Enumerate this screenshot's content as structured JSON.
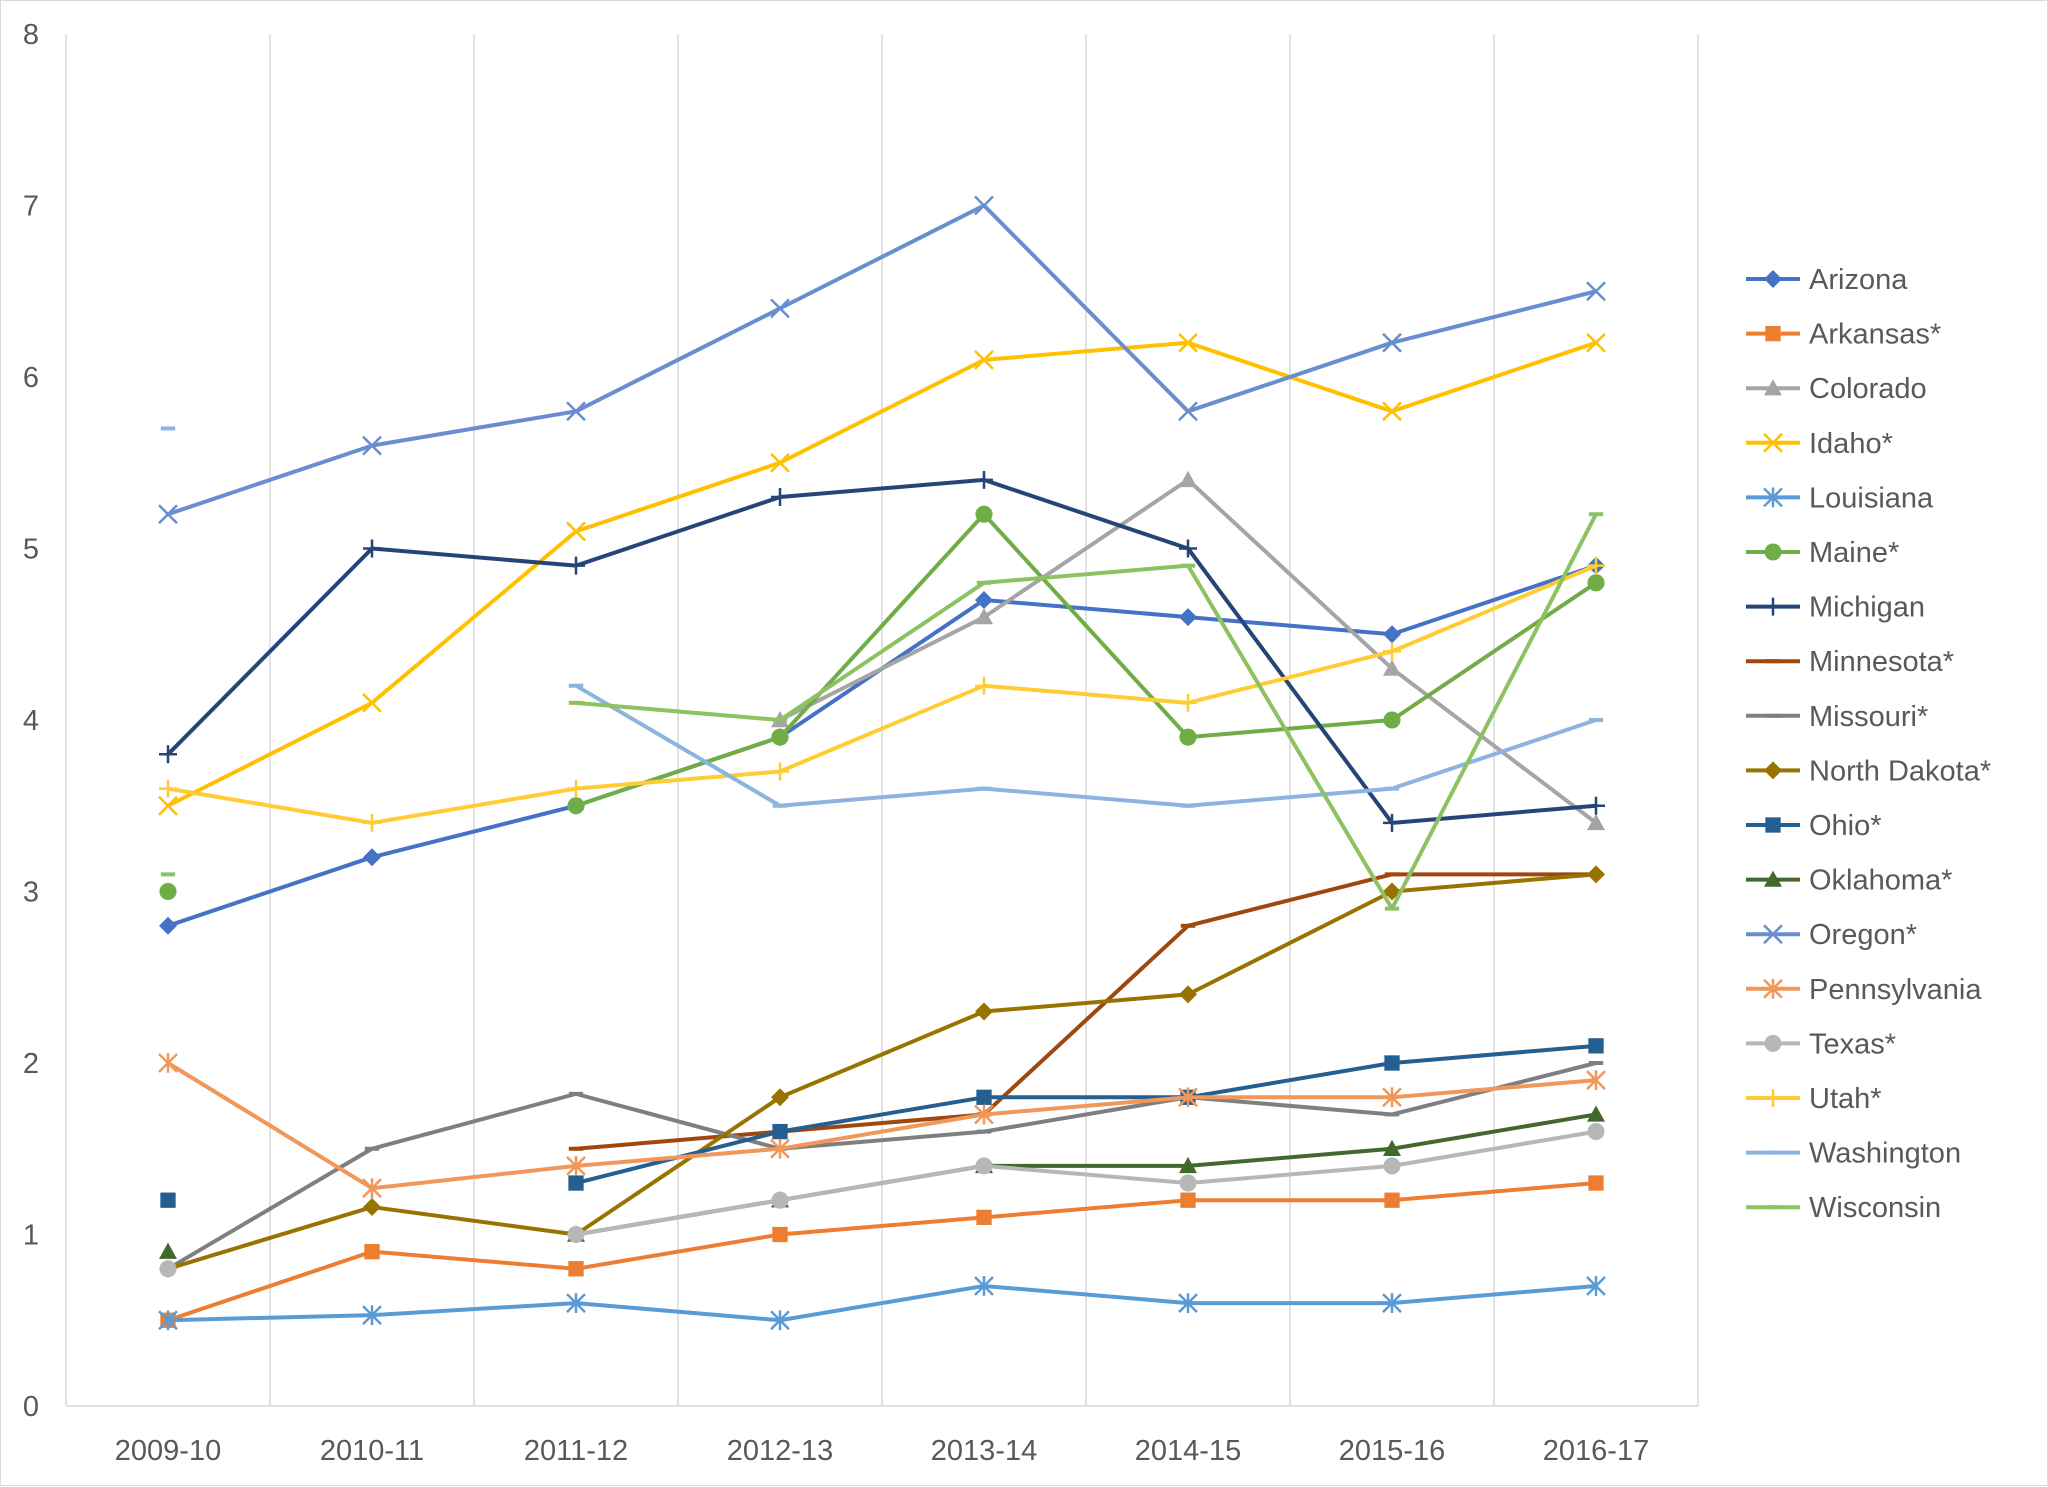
{
  "chart_data": {
    "type": "line",
    "title": "",
    "xlabel": "",
    "ylabel": "",
    "categories": [
      "2009-10",
      "2010-11",
      "2011-12",
      "2012-13",
      "2013-14",
      "2014-15",
      "2015-16",
      "2016-17"
    ],
    "ylim": [
      0,
      8
    ],
    "yticks": [
      "0",
      "1",
      "2",
      "3",
      "4",
      "5",
      "6",
      "7",
      "8"
    ],
    "grid": "vertical category gridlines",
    "legend_position": "right",
    "series": [
      {
        "name": "Arizona",
        "color": "#4472C4",
        "marker": "diamond",
        "values": [
          2.8,
          3.2,
          3.5,
          3.9,
          4.7,
          4.6,
          4.5,
          4.9
        ]
      },
      {
        "name": "Arkansas*",
        "color": "#ED7D31",
        "marker": "square",
        "values": [
          0.5,
          0.9,
          0.8,
          1.0,
          1.1,
          1.2,
          1.2,
          1.3
        ]
      },
      {
        "name": "Colorado",
        "color": "#A5A5A5",
        "marker": "triangle",
        "values": [
          null,
          null,
          null,
          4.0,
          4.6,
          5.4,
          4.3,
          3.4
        ]
      },
      {
        "name": "Idaho*",
        "color": "#FFC000",
        "marker": "x",
        "values": [
          3.5,
          4.1,
          5.1,
          5.5,
          6.1,
          6.2,
          5.8,
          6.2
        ]
      },
      {
        "name": "Louisiana",
        "color": "#5B9BD5",
        "marker": "star",
        "values": [
          0.5,
          0.53,
          0.6,
          0.5,
          0.7,
          0.6,
          0.6,
          0.7
        ]
      },
      {
        "name": "Maine*",
        "color": "#70AD47",
        "marker": "circle",
        "values": [
          3.0,
          null,
          3.5,
          3.9,
          5.2,
          3.9,
          4.0,
          4.8
        ]
      },
      {
        "name": "Michigan",
        "color": "#264478",
        "marker": "plus",
        "values": [
          3.8,
          5.0,
          4.9,
          5.3,
          5.4,
          5.0,
          3.4,
          3.5
        ]
      },
      {
        "name": "Minnesota*",
        "color": "#9E480E",
        "marker": "dash",
        "values": [
          null,
          null,
          1.5,
          1.6,
          1.7,
          2.8,
          3.1,
          3.1
        ]
      },
      {
        "name": "Missouri*",
        "color": "#7F7F7F",
        "marker": "dash",
        "values": [
          0.8,
          1.5,
          1.82,
          1.5,
          1.6,
          1.8,
          1.7,
          2.0
        ]
      },
      {
        "name": "North Dakota*",
        "color": "#997300",
        "marker": "diamond",
        "values": [
          0.8,
          1.16,
          1.0,
          1.8,
          2.3,
          2.4,
          3.0,
          3.1
        ]
      },
      {
        "name": "Ohio*",
        "color": "#255E91",
        "marker": "square",
        "values": [
          1.2,
          null,
          1.3,
          1.6,
          1.8,
          1.8,
          2.0,
          2.1
        ]
      },
      {
        "name": "Oklahoma*",
        "color": "#43682B",
        "marker": "triangle",
        "values": [
          0.9,
          null,
          1.0,
          1.2,
          1.4,
          1.4,
          1.5,
          1.7
        ]
      },
      {
        "name": "Oregon*",
        "color": "#698ED0",
        "marker": "x",
        "values": [
          5.2,
          5.6,
          5.8,
          6.4,
          7.0,
          5.8,
          6.2,
          6.5
        ]
      },
      {
        "name": "Pennsylvania",
        "color": "#F1975A",
        "marker": "star",
        "values": [
          2.0,
          1.27,
          1.4,
          1.5,
          1.7,
          1.8,
          1.8,
          1.9
        ]
      },
      {
        "name": "Texas*",
        "color": "#B7B7B7",
        "marker": "circle",
        "values": [
          0.8,
          null,
          1.0,
          1.2,
          1.4,
          1.3,
          1.4,
          1.6
        ]
      },
      {
        "name": "Utah*",
        "color": "#FFCD33",
        "marker": "plus",
        "values": [
          3.6,
          3.4,
          3.6,
          3.7,
          4.2,
          4.1,
          4.4,
          4.9
        ]
      },
      {
        "name": "Washington",
        "color": "#8CB4E1",
        "marker": "dash",
        "values": [
          5.7,
          null,
          4.2,
          3.5,
          3.6,
          3.5,
          3.6,
          4.0
        ]
      },
      {
        "name": "Wisconsin",
        "color": "#8DC263",
        "marker": "dash",
        "values": [
          3.1,
          null,
          4.1,
          4.0,
          4.8,
          4.9,
          2.9,
          5.2
        ]
      }
    ]
  }
}
